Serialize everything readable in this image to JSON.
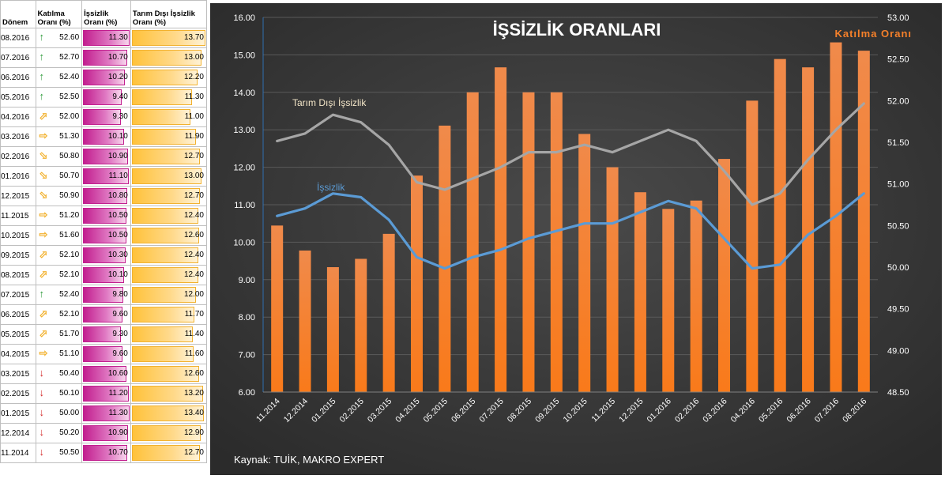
{
  "table": {
    "headers": {
      "period": "Dönem",
      "participation": "Katılma Oranı (%)",
      "unemployment": "İşsizlik Oranı (%)",
      "nonagri": "Tarım Dışı İşsizlik Oranı (%)"
    },
    "rows": [
      {
        "period": "08.2016",
        "participation": "52.60",
        "unemployment": "11.30",
        "nonagri": "13.70",
        "arrow": "up"
      },
      {
        "period": "07.2016",
        "participation": "52.70",
        "unemployment": "10.70",
        "nonagri": "13.00",
        "arrow": "up"
      },
      {
        "period": "06.2016",
        "participation": "52.40",
        "unemployment": "10.20",
        "nonagri": "12.20",
        "arrow": "up"
      },
      {
        "period": "05.2016",
        "participation": "52.50",
        "unemployment": "9.40",
        "nonagri": "11.30",
        "arrow": "up"
      },
      {
        "period": "04.2016",
        "participation": "52.00",
        "unemployment": "9.30",
        "nonagri": "11.00",
        "arrow": "up-right"
      },
      {
        "period": "03.2016",
        "participation": "51.30",
        "unemployment": "10.10",
        "nonagri": "11.90",
        "arrow": "right"
      },
      {
        "period": "02.2016",
        "participation": "50.80",
        "unemployment": "10.90",
        "nonagri": "12.70",
        "arrow": "down-right"
      },
      {
        "period": "01.2016",
        "participation": "50.70",
        "unemployment": "11.10",
        "nonagri": "13.00",
        "arrow": "down-right"
      },
      {
        "period": "12.2015",
        "participation": "50.90",
        "unemployment": "10.80",
        "nonagri": "12.70",
        "arrow": "down-right"
      },
      {
        "period": "11.2015",
        "participation": "51.20",
        "unemployment": "10.50",
        "nonagri": "12.40",
        "arrow": "right"
      },
      {
        "period": "10.2015",
        "participation": "51.60",
        "unemployment": "10.50",
        "nonagri": "12.60",
        "arrow": "right"
      },
      {
        "period": "09.2015",
        "participation": "52.10",
        "unemployment": "10.30",
        "nonagri": "12.40",
        "arrow": "up-right"
      },
      {
        "period": "08.2015",
        "participation": "52.10",
        "unemployment": "10.10",
        "nonagri": "12.40",
        "arrow": "up-right"
      },
      {
        "period": "07.2015",
        "participation": "52.40",
        "unemployment": "9.80",
        "nonagri": "12.00",
        "arrow": "up"
      },
      {
        "period": "06.2015",
        "participation": "52.10",
        "unemployment": "9.60",
        "nonagri": "11.70",
        "arrow": "up-right"
      },
      {
        "period": "05.2015",
        "participation": "51.70",
        "unemployment": "9.30",
        "nonagri": "11.40",
        "arrow": "up-right"
      },
      {
        "period": "04.2015",
        "participation": "51.10",
        "unemployment": "9.60",
        "nonagri": "11.60",
        "arrow": "right"
      },
      {
        "period": "03.2015",
        "participation": "50.40",
        "unemployment": "10.60",
        "nonagri": "12.60",
        "arrow": "down"
      },
      {
        "period": "02.2015",
        "participation": "50.10",
        "unemployment": "11.20",
        "nonagri": "13.20",
        "arrow": "down"
      },
      {
        "period": "01.2015",
        "participation": "50.00",
        "unemployment": "11.30",
        "nonagri": "13.40",
        "arrow": "down"
      },
      {
        "period": "12.2014",
        "participation": "50.20",
        "unemployment": "10.90",
        "nonagri": "12.90",
        "arrow": "down"
      },
      {
        "period": "11.2014",
        "participation": "50.50",
        "unemployment": "10.70",
        "nonagri": "12.70",
        "arrow": "down"
      }
    ],
    "bar_max": {
      "unemployment": 11.3,
      "nonagri": 13.7
    },
    "colors": {
      "up": "#2e9b3a",
      "right": "#f2b230",
      "down": "#d42a2a",
      "pink": "#c21f8f",
      "gold": "#ffc23a"
    }
  },
  "chart_data": {
    "type": "bar",
    "title": "İŞSİZLİK ORANLARI",
    "source": "Kaynak: TUİK, MAKRO EXPERT",
    "categories": [
      "11.2014",
      "12.2014",
      "01.2015",
      "02.2015",
      "03.2015",
      "04.2015",
      "05.2015",
      "06.2015",
      "07.2015",
      "08.2015",
      "09.2015",
      "10.2015",
      "11.2015",
      "12.2015",
      "01.2016",
      "02.2016",
      "03.2016",
      "04.2016",
      "05.2016",
      "06.2016",
      "07.2016",
      "08.2016"
    ],
    "series": [
      {
        "name": "Katılma Oranı",
        "type": "bar",
        "axis": "right",
        "color": "#f5802a",
        "values": [
          50.5,
          50.2,
          50.0,
          50.1,
          50.4,
          51.1,
          51.7,
          52.1,
          52.4,
          52.1,
          52.1,
          51.6,
          51.2,
          50.9,
          50.7,
          50.8,
          51.3,
          52.0,
          52.5,
          52.4,
          52.7,
          52.6
        ]
      },
      {
        "name": "İşsizlik",
        "type": "line",
        "axis": "left",
        "color": "#5b9bd5",
        "values": [
          10.7,
          10.9,
          11.3,
          11.2,
          10.6,
          9.6,
          9.3,
          9.6,
          9.8,
          10.1,
          10.3,
          10.5,
          10.5,
          10.8,
          11.1,
          10.9,
          10.1,
          9.3,
          9.4,
          10.2,
          10.7,
          11.3
        ]
      },
      {
        "name": "Tarım Dışı İşsizlik",
        "type": "line",
        "axis": "left",
        "color": "#a6a6a6",
        "values": [
          12.7,
          12.9,
          13.4,
          13.2,
          12.6,
          11.6,
          11.4,
          11.7,
          12.0,
          12.4,
          12.4,
          12.6,
          12.4,
          12.7,
          13.0,
          12.7,
          11.9,
          11.0,
          11.3,
          12.2,
          13.0,
          13.7
        ]
      }
    ],
    "y_left": {
      "min": 6.0,
      "max": 16.0,
      "step": 1.0,
      "ticks": [
        "6.00",
        "7.00",
        "8.00",
        "9.00",
        "10.00",
        "11.00",
        "12.00",
        "13.00",
        "14.00",
        "15.00",
        "16.00"
      ]
    },
    "y_right": {
      "min": 48.5,
      "max": 53.0,
      "step": 0.5,
      "ticks": [
        "48.50",
        "49.00",
        "49.50",
        "50.00",
        "50.50",
        "51.00",
        "51.50",
        "52.00",
        "52.50",
        "53.00"
      ]
    },
    "grid": true,
    "background": "#3a3a3a"
  }
}
